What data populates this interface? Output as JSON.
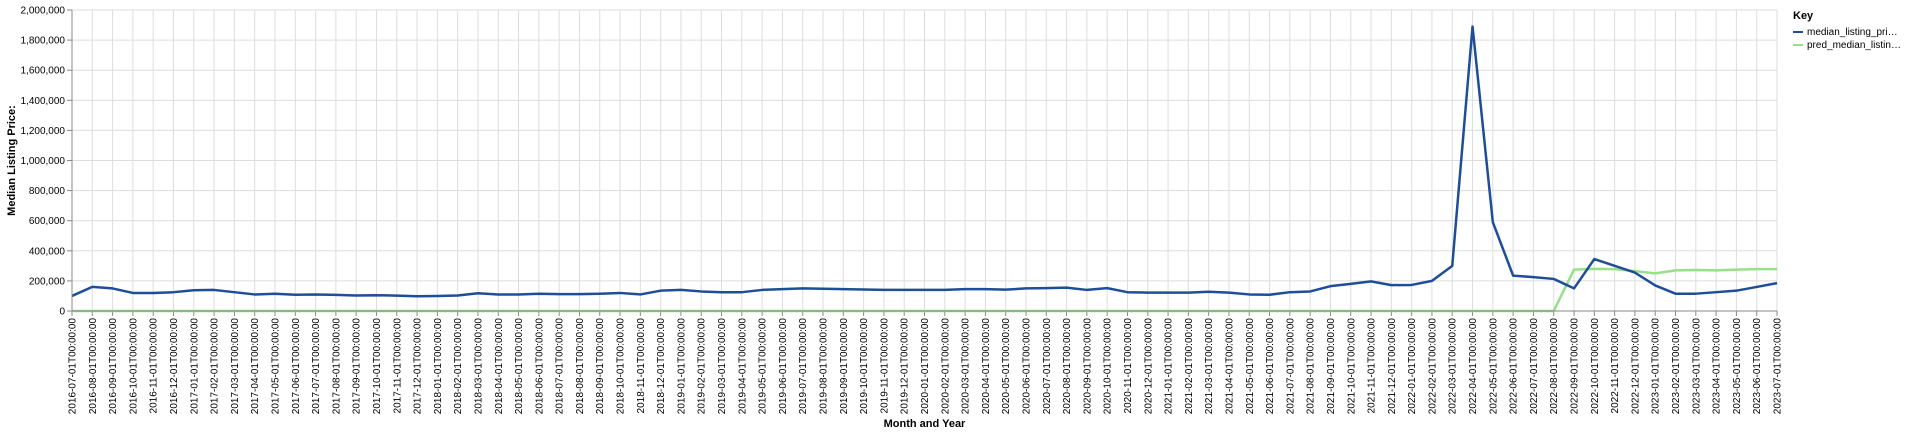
{
  "chart_data": {
    "type": "line",
    "xlabel": "Month and Year",
    "ylabel": "Median Listing Price:",
    "ylim": [
      0,
      2000000
    ],
    "yticks": [
      0,
      200000,
      400000,
      600000,
      800000,
      1000000,
      1200000,
      1400000,
      1600000,
      1800000,
      2000000
    ],
    "ytick_labels": [
      "0",
      "200,000",
      "400,000",
      "600,000",
      "800,000",
      "1,000,000",
      "1,200,000",
      "1,400,000",
      "1,600,000",
      "1,800,000",
      "2,000,000"
    ],
    "grid": true,
    "legend": {
      "title": "Key",
      "placement": "right",
      "entries": [
        {
          "label": "median_listing_pri…",
          "color": "#1f4e99"
        },
        {
          "label": "pred_median_listin…",
          "color": "#98df8a"
        }
      ]
    },
    "x": [
      "2016-07-01T00:00:00",
      "2016-08-01T00:00:00",
      "2016-09-01T00:00:00",
      "2016-10-01T00:00:00",
      "2016-11-01T00:00:00",
      "2016-12-01T00:00:00",
      "2017-01-01T00:00:00",
      "2017-02-01T00:00:00",
      "2017-03-01T00:00:00",
      "2017-04-01T00:00:00",
      "2017-05-01T00:00:00",
      "2017-06-01T00:00:00",
      "2017-07-01T00:00:00",
      "2017-08-01T00:00:00",
      "2017-09-01T00:00:00",
      "2017-10-01T00:00:00",
      "2017-11-01T00:00:00",
      "2017-12-01T00:00:00",
      "2018-01-01T00:00:00",
      "2018-02-01T00:00:00",
      "2018-03-01T00:00:00",
      "2018-04-01T00:00:00",
      "2018-05-01T00:00:00",
      "2018-06-01T00:00:00",
      "2018-07-01T00:00:00",
      "2018-08-01T00:00:00",
      "2018-09-01T00:00:00",
      "2018-10-01T00:00:00",
      "2018-11-01T00:00:00",
      "2018-12-01T00:00:00",
      "2019-01-01T00:00:00",
      "2019-02-01T00:00:00",
      "2019-03-01T00:00:00",
      "2019-04-01T00:00:00",
      "2019-05-01T00:00:00",
      "2019-06-01T00:00:00",
      "2019-07-01T00:00:00",
      "2019-08-01T00:00:00",
      "2019-09-01T00:00:00",
      "2019-10-01T00:00:00",
      "2019-11-01T00:00:00",
      "2019-12-01T00:00:00",
      "2020-01-01T00:00:00",
      "2020-02-01T00:00:00",
      "2020-03-01T00:00:00",
      "2020-04-01T00:00:00",
      "2020-05-01T00:00:00",
      "2020-06-01T00:00:00",
      "2020-07-01T00:00:00",
      "2020-08-01T00:00:00",
      "2020-09-01T00:00:00",
      "2020-10-01T00:00:00",
      "2020-11-01T00:00:00",
      "2020-12-01T00:00:00",
      "2021-01-01T00:00:00",
      "2021-02-01T00:00:00",
      "2021-03-01T00:00:00",
      "2021-04-01T00:00:00",
      "2021-05-01T00:00:00",
      "2021-06-01T00:00:00",
      "2021-07-01T00:00:00",
      "2021-08-01T00:00:00",
      "2021-09-01T00:00:00",
      "2021-10-01T00:00:00",
      "2021-11-01T00:00:00",
      "2021-12-01T00:00:00",
      "2022-01-01T00:00:00",
      "2022-02-01T00:00:00",
      "2022-03-01T00:00:00",
      "2022-04-01T00:00:00",
      "2022-05-01T00:00:00",
      "2022-06-01T00:00:00",
      "2022-07-01T00:00:00",
      "2022-08-01T00:00:00",
      "2022-09-01T00:00:00",
      "2022-10-01T00:00:00",
      "2022-11-01T00:00:00",
      "2022-12-01T00:00:00",
      "2023-01-01T00:00:00",
      "2023-02-01T00:00:00",
      "2023-03-01T00:00:00",
      "2023-04-01T00:00:00",
      "2023-05-01T00:00:00",
      "2023-06-01T00:00:00",
      "2023-07-01T00:00:00"
    ],
    "series": [
      {
        "name": "median_listing_pri…",
        "color": "#1f4e99",
        "values": [
          100000,
          160000,
          150000,
          120000,
          120000,
          125000,
          138000,
          140000,
          125000,
          110000,
          115000,
          108000,
          110000,
          107000,
          103000,
          105000,
          102000,
          98000,
          100000,
          103000,
          118000,
          110000,
          110000,
          115000,
          112000,
          112000,
          115000,
          120000,
          110000,
          135000,
          140000,
          130000,
          125000,
          125000,
          140000,
          145000,
          150000,
          148000,
          145000,
          143000,
          140000,
          140000,
          140000,
          140000,
          145000,
          145000,
          142000,
          150000,
          152000,
          155000,
          140000,
          152000,
          125000,
          122000,
          122000,
          122000,
          128000,
          122000,
          110000,
          108000,
          125000,
          130000,
          165000,
          180000,
          197000,
          172000,
          173000,
          200000,
          300000,
          1890000,
          590000,
          235000,
          225000,
          213000,
          150000,
          345000,
          300000,
          255000,
          170000,
          115000,
          115000,
          125000,
          135000,
          160000,
          185000
        ]
      },
      {
        "name": "pred_median_listin…",
        "color": "#98df8a",
        "values": [
          0,
          0,
          0,
          0,
          0,
          0,
          0,
          0,
          0,
          0,
          0,
          0,
          0,
          0,
          0,
          0,
          0,
          0,
          0,
          0,
          0,
          0,
          0,
          0,
          0,
          0,
          0,
          0,
          0,
          0,
          0,
          0,
          0,
          0,
          0,
          0,
          0,
          0,
          0,
          0,
          0,
          0,
          0,
          0,
          0,
          0,
          0,
          0,
          0,
          0,
          0,
          0,
          0,
          0,
          0,
          0,
          0,
          0,
          0,
          0,
          0,
          0,
          0,
          0,
          0,
          0,
          0,
          0,
          0,
          0,
          0,
          0,
          0,
          0,
          275000,
          280000,
          278000,
          265000,
          250000,
          270000,
          272000,
          270000,
          275000,
          278000,
          278000
        ]
      }
    ]
  }
}
